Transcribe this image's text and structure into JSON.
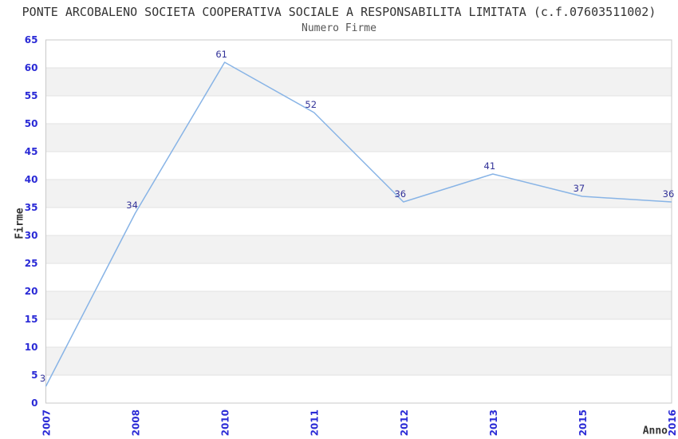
{
  "chart_data": {
    "type": "line",
    "title": "PONTE ARCOBALENO SOCIETA COOPERATIVA SOCIALE A RESPONSABILITA LIMITATA (c.f.07603511002)",
    "subtitle": "Numero Firme",
    "xlabel": "Anno",
    "ylabel": "Firme",
    "categories": [
      "2007",
      "2008",
      "2010",
      "2011",
      "2012",
      "2013",
      "2015",
      "2016"
    ],
    "values": [
      3,
      34,
      61,
      52,
      36,
      41,
      37,
      36
    ],
    "ylim": [
      0,
      65
    ],
    "ytick_step": 5,
    "grid": true,
    "legend_position": "none",
    "band_pattern": "alternating-horizontal",
    "colors": {
      "line": "#88b4e6",
      "data_label": "#333399",
      "tick_label": "#2a2ad6",
      "band": "#f2f2f2",
      "gridline": "#e2e2e2",
      "border": "#c9c9c9",
      "title": "#333333",
      "subtitle": "#555555",
      "axis_title": "#333333",
      "background": "#ffffff"
    }
  }
}
